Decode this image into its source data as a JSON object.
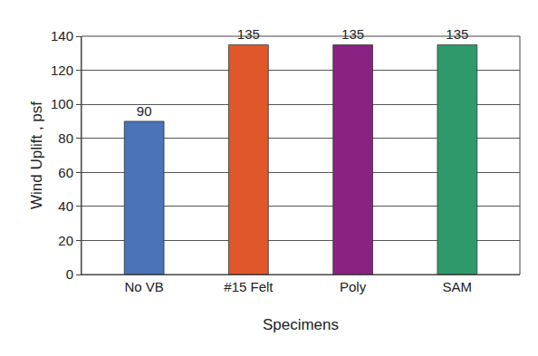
{
  "chart_data": {
    "type": "bar",
    "x_label": "Specimens",
    "y_label": "Wind Uplift , psf",
    "categories": [
      "No VB",
      "#15 Felt",
      "Poly",
      "SAM"
    ],
    "values": [
      90,
      135,
      135,
      135
    ],
    "colors": [
      "#4a73b8",
      "#e0572a",
      "#8a2282",
      "#2e9a6b"
    ],
    "ylim": [
      0,
      140
    ],
    "yticks": [
      0,
      20,
      40,
      60,
      80,
      100,
      120,
      140
    ],
    "grid": true,
    "data_labels": true
  }
}
